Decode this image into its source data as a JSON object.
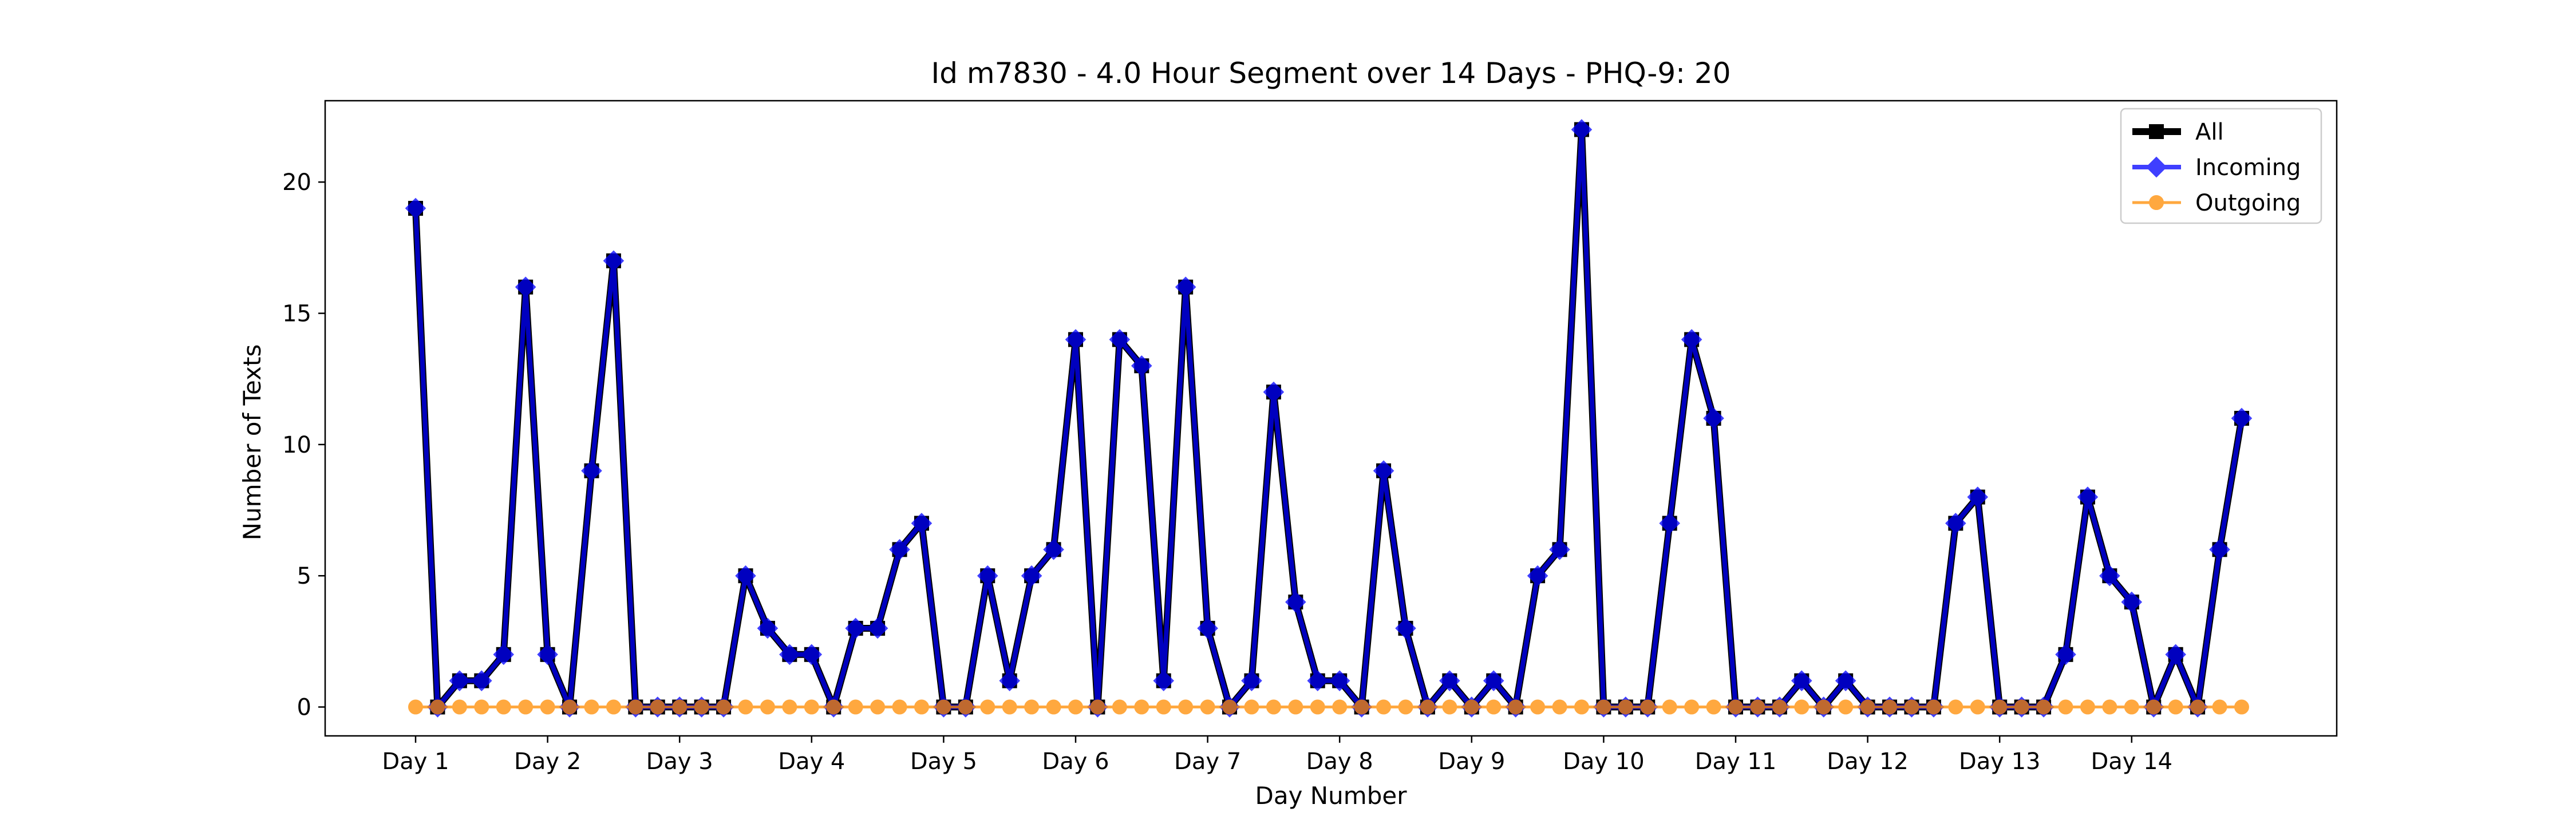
{
  "chart_data": {
    "type": "line",
    "title": "Id m7830 - 4.0 Hour Segment over 14 Days - PHQ-9: 20",
    "xlabel": "Day Number",
    "ylabel": "Number of Texts",
    "x_tick_labels": [
      "Day 1",
      "Day 2",
      "Day 3",
      "Day 4",
      "Day 5",
      "Day 6",
      "Day 7",
      "Day 8",
      "Day 9",
      "Day 10",
      "Day 11",
      "Day 12",
      "Day 13",
      "Day 14"
    ],
    "y_ticks": [
      0,
      5,
      10,
      15,
      20
    ],
    "ylim": [
      -1.1,
      23.1
    ],
    "xlim": [
      -0.6,
      6.0
    ],
    "points_per_day": 6,
    "grid": false,
    "legend_position": "top-right",
    "series": [
      {
        "name": "All",
        "color": "#000000",
        "marker": "square",
        "values": [
          19,
          0,
          1,
          1,
          2,
          16,
          2,
          0,
          9,
          17,
          0,
          0,
          0,
          0,
          0,
          5,
          3,
          2,
          2,
          0,
          3,
          3,
          6,
          7,
          0,
          0,
          5,
          1,
          5,
          6,
          14,
          0,
          14,
          13,
          1,
          16,
          3,
          0,
          1,
          12,
          4,
          1,
          1,
          0,
          9,
          3,
          0,
          1,
          0,
          1,
          0,
          5,
          6,
          22,
          0,
          0,
          0,
          7,
          14,
          11,
          0,
          0,
          0,
          1,
          0,
          1,
          0,
          0,
          0,
          0,
          7,
          8,
          0,
          0,
          0,
          2,
          8,
          5,
          4,
          0,
          2,
          0,
          6,
          11
        ]
      },
      {
        "name": "Incoming",
        "color": "#0000ff",
        "marker": "diamond",
        "values": [
          19,
          0,
          1,
          1,
          2,
          16,
          2,
          0,
          9,
          17,
          0,
          0,
          0,
          0,
          0,
          5,
          3,
          2,
          2,
          0,
          3,
          3,
          6,
          7,
          0,
          0,
          5,
          1,
          5,
          6,
          14,
          0,
          14,
          13,
          1,
          16,
          3,
          0,
          1,
          12,
          4,
          1,
          1,
          0,
          9,
          3,
          0,
          1,
          0,
          1,
          0,
          5,
          6,
          22,
          0,
          0,
          0,
          7,
          14,
          11,
          0,
          0,
          0,
          1,
          0,
          1,
          0,
          0,
          0,
          0,
          7,
          8,
          0,
          0,
          0,
          2,
          8,
          5,
          4,
          0,
          2,
          0,
          6,
          11
        ]
      },
      {
        "name": "Outgoing",
        "color": "#ff8c00",
        "marker": "circle",
        "values": [
          0,
          0,
          0,
          0,
          0,
          0,
          0,
          0,
          0,
          0,
          0,
          0,
          0,
          0,
          0,
          0,
          0,
          0,
          0,
          0,
          0,
          0,
          0,
          0,
          0,
          0,
          0,
          0,
          0,
          0,
          0,
          0,
          0,
          0,
          0,
          0,
          0,
          0,
          0,
          0,
          0,
          0,
          0,
          0,
          0,
          0,
          0,
          0,
          0,
          0,
          0,
          0,
          0,
          0,
          0,
          0,
          0,
          0,
          0,
          0,
          0,
          0,
          0,
          0,
          0,
          0,
          0,
          0,
          0,
          0,
          0,
          0,
          0,
          0,
          0,
          0,
          0,
          0,
          0,
          0,
          0,
          0,
          0,
          0
        ]
      }
    ]
  }
}
